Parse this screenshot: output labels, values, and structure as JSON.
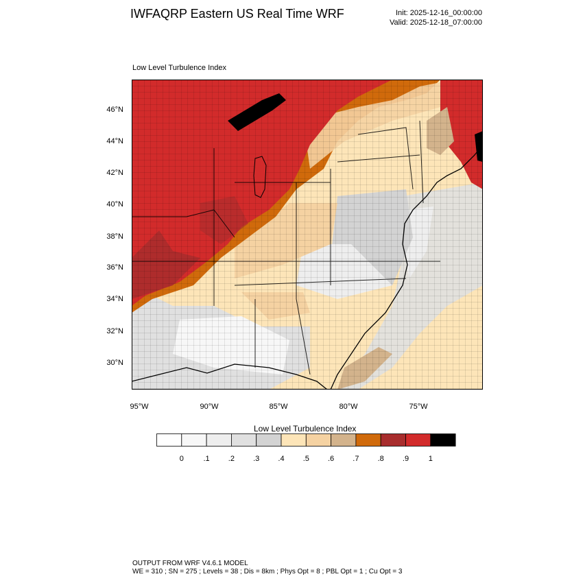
{
  "header": {
    "title": "IWFAQRP Eastern US Real Time WRF",
    "init": "Init: 2025-12-16_00:00:00",
    "valid": "Valid: 2025-12-18_07:00:00"
  },
  "plot": {
    "title": "Low Level Turbulence Index",
    "lat_labels": [
      "46°N",
      "44°N",
      "42°N",
      "40°N",
      "38°N",
      "36°N",
      "34°N",
      "32°N",
      "30°N"
    ],
    "lon_labels": [
      "95°W",
      "90°W",
      "85°W",
      "80°W",
      "75°W"
    ]
  },
  "legend": {
    "title": "Low Level Turbulence Index",
    "labels": [
      "0",
      ".1",
      ".2",
      ".3",
      ".4",
      ".5",
      ".6",
      ".7",
      ".8",
      ".9",
      "1"
    ],
    "colors": [
      "#ffffff",
      "#f7f7f7",
      "#eeeeee",
      "#e0e0e0",
      "#d3d3d3",
      "#fde5b8",
      "#f5d2a2",
      "#d3b38c",
      "#d06a0b",
      "#a82d2d",
      "#d22b2b",
      "#000000"
    ]
  },
  "footer": {
    "line1": "OUTPUT FROM WRF V4.6.1 MODEL",
    "line2": "WE = 310 ; SN = 275 ; Levels = 38 ; Dis = 8km ; Phys Opt = 8 ; PBL Opt = 1 ; Cu Opt = 3"
  }
}
